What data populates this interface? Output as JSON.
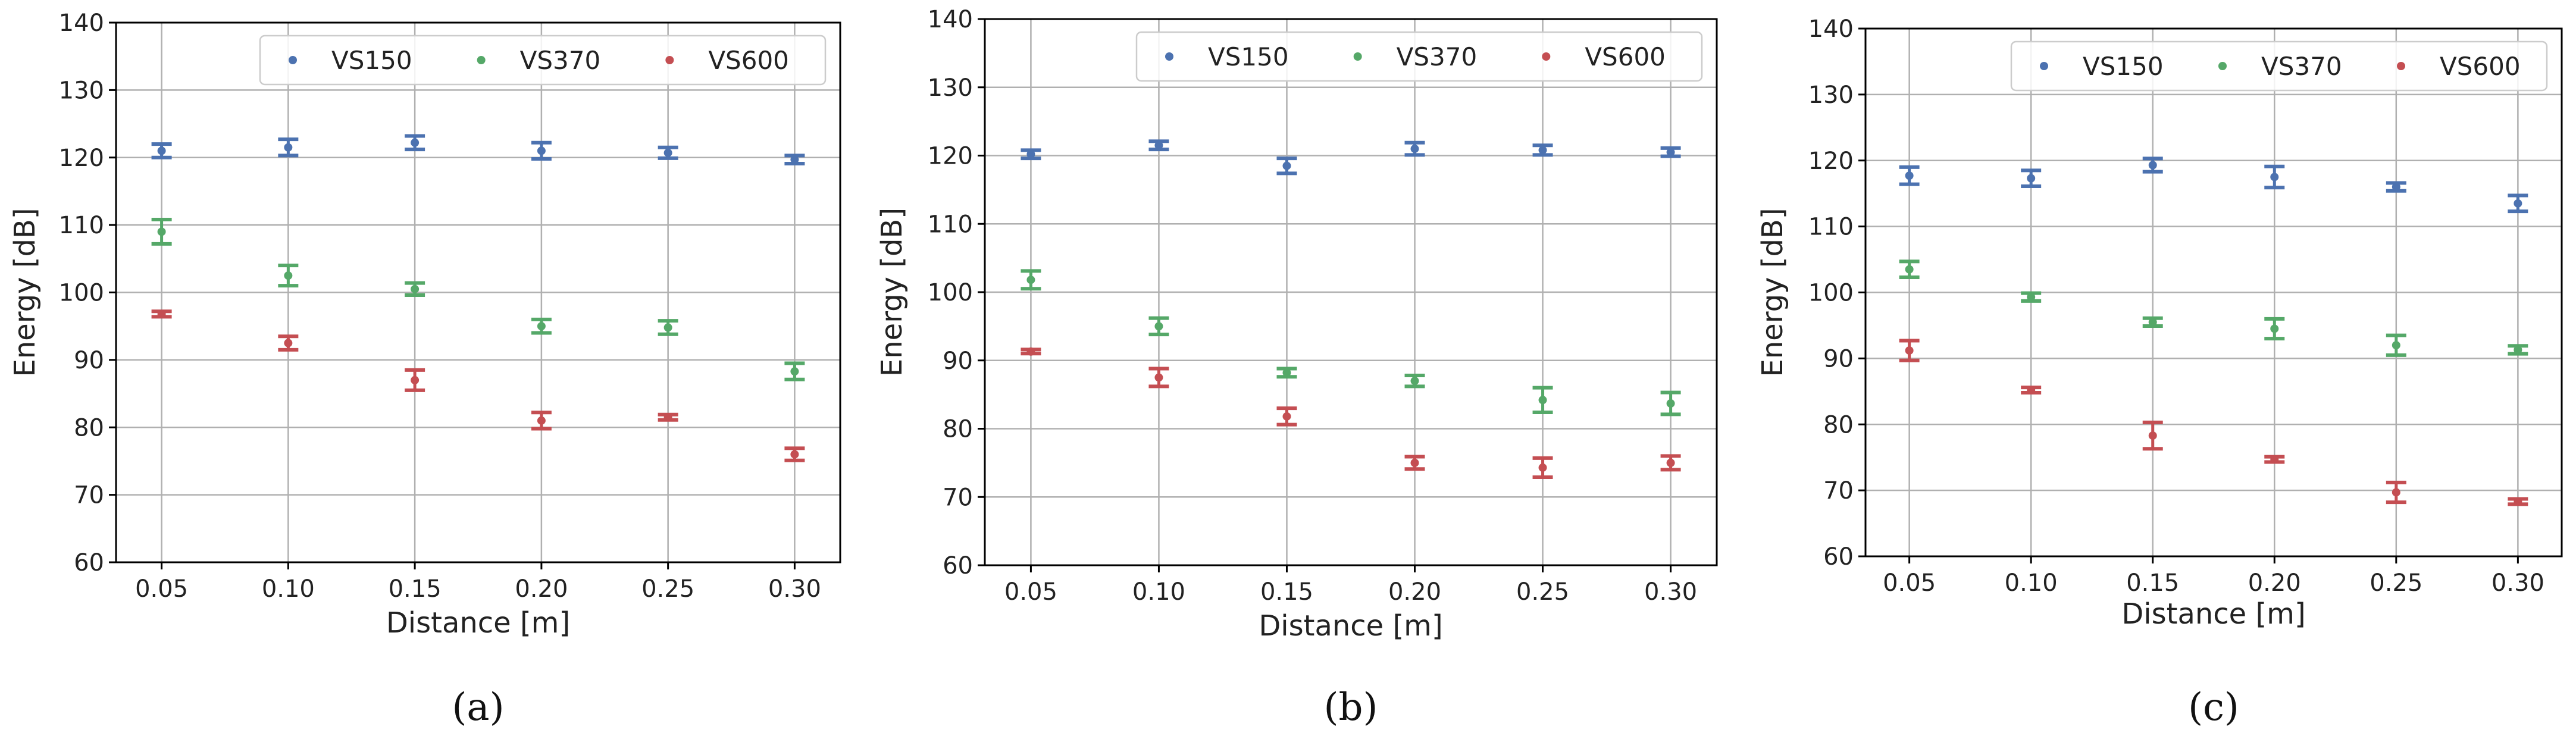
{
  "chart_data": [
    {
      "type": "scatter",
      "caption": "(a)",
      "xlabel": "Distance [m]",
      "ylabel": "Energy [dB]",
      "ylim": [
        60,
        140
      ],
      "yticks": [
        60,
        70,
        80,
        90,
        100,
        110,
        120,
        130,
        140
      ],
      "x": [
        0.05,
        0.1,
        0.15,
        0.2,
        0.25,
        0.3
      ],
      "xtick_labels": [
        "0.05",
        "0.10",
        "0.15",
        "0.20",
        "0.25",
        "0.30"
      ],
      "grid": true,
      "legend_position": "top-right",
      "series": [
        {
          "name": "VS150",
          "color": "#4c72b0",
          "values": [
            121.0,
            121.5,
            122.2,
            121.0,
            120.7,
            119.7
          ],
          "errors": [
            1.0,
            1.2,
            1.0,
            1.2,
            0.8,
            0.6
          ]
        },
        {
          "name": "VS370",
          "color": "#55a868",
          "values": [
            109.0,
            102.5,
            100.5,
            95.0,
            94.8,
            88.3
          ],
          "errors": [
            1.8,
            1.5,
            0.9,
            1.0,
            1.0,
            1.2
          ]
        },
        {
          "name": "VS600",
          "color": "#c44e52",
          "values": [
            96.8,
            92.5,
            87.0,
            81.0,
            81.5,
            76.0
          ],
          "errors": [
            0.4,
            1.0,
            1.5,
            1.2,
            0.4,
            0.9
          ]
        }
      ]
    },
    {
      "type": "scatter",
      "caption": "(b)",
      "xlabel": "Distance [m]",
      "ylabel": "Energy [dB]",
      "ylim": [
        60,
        140
      ],
      "yticks": [
        60,
        70,
        80,
        90,
        100,
        110,
        120,
        130,
        140
      ],
      "x": [
        0.05,
        0.1,
        0.15,
        0.2,
        0.25,
        0.3
      ],
      "xtick_labels": [
        "0.05",
        "0.10",
        "0.15",
        "0.20",
        "0.25",
        "0.30"
      ],
      "grid": true,
      "legend_position": "top-right",
      "series": [
        {
          "name": "VS150",
          "color": "#4c72b0",
          "values": [
            120.2,
            121.5,
            118.5,
            121.0,
            120.8,
            120.5
          ],
          "errors": [
            0.6,
            0.6,
            1.1,
            0.9,
            0.7,
            0.6
          ]
        },
        {
          "name": "VS370",
          "color": "#55a868",
          "values": [
            101.8,
            95.0,
            88.2,
            87.0,
            84.2,
            83.7
          ],
          "errors": [
            1.3,
            1.2,
            0.6,
            0.8,
            1.8,
            1.6
          ]
        },
        {
          "name": "VS600",
          "color": "#c44e52",
          "values": [
            91.3,
            87.5,
            81.8,
            75.0,
            74.3,
            75.0
          ],
          "errors": [
            0.3,
            1.3,
            1.2,
            0.9,
            1.4,
            1.0
          ]
        }
      ]
    },
    {
      "type": "scatter",
      "caption": "(c)",
      "xlabel": "Distance [m]",
      "ylabel": "Energy [dB]",
      "ylim": [
        60,
        140
      ],
      "yticks": [
        60,
        70,
        80,
        90,
        100,
        110,
        120,
        130,
        140
      ],
      "x": [
        0.05,
        0.1,
        0.15,
        0.2,
        0.25,
        0.3
      ],
      "xtick_labels": [
        "0.05",
        "0.10",
        "0.15",
        "0.20",
        "0.25",
        "0.30"
      ],
      "grid": true,
      "legend_position": "top-right",
      "series": [
        {
          "name": "VS150",
          "color": "#4c72b0",
          "values": [
            117.7,
            117.3,
            119.3,
            117.5,
            116.0,
            113.5
          ],
          "errors": [
            1.3,
            1.2,
            1.0,
            1.6,
            0.6,
            1.2
          ]
        },
        {
          "name": "VS370",
          "color": "#55a868",
          "values": [
            103.5,
            99.3,
            95.5,
            94.5,
            92.0,
            91.3
          ],
          "errors": [
            1.2,
            0.6,
            0.6,
            1.5,
            1.5,
            0.6
          ]
        },
        {
          "name": "VS600",
          "color": "#c44e52",
          "values": [
            91.2,
            85.2,
            78.3,
            74.7,
            69.7,
            68.3
          ],
          "errors": [
            1.5,
            0.4,
            2.0,
            0.4,
            1.5,
            0.4
          ]
        }
      ]
    }
  ]
}
